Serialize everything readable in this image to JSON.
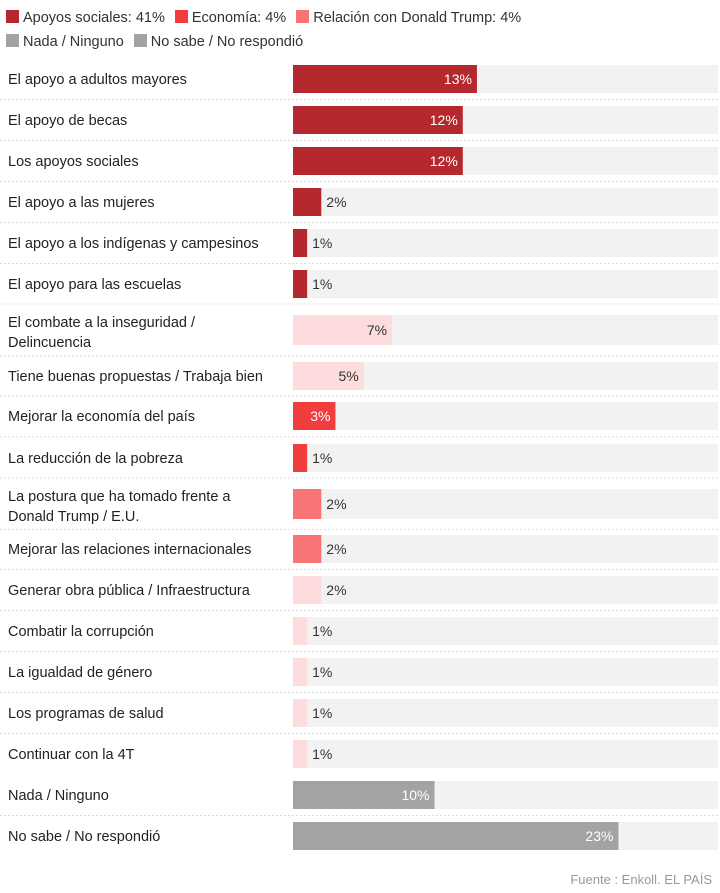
{
  "legend": [
    {
      "label": "Apoyos sociales: 41%",
      "color": "#b5292e"
    },
    {
      "label": "Economía: 4%",
      "color": "#f23d3f"
    },
    {
      "label": "Relación con Donald Trump: 4%",
      "color": "#f97575"
    },
    {
      "label": "Nada / Ninguno",
      "color": "#a3a3a3"
    },
    {
      "label": "No sabe / No respondió",
      "color": "#a3a3a3"
    }
  ],
  "source": "Fuente : Enkoll. EL PAÍS",
  "chart_data": {
    "type": "bar",
    "orientation": "horizontal",
    "xlim": [
      0,
      30
    ],
    "categories": [
      "El apoyo a adultos mayores",
      "El apoyo de becas",
      "Los apoyos sociales",
      "El apoyo a las mujeres",
      "El apoyo a los indígenas y campesinos",
      "El apoyo para las escuelas",
      "El combate a la inseguridad / Delincuencia",
      "Tiene buenas propuestas / Trabaja bien",
      "Mejorar la economía del país",
      "La reducción de la pobreza",
      "La postura que ha tomado frente a Donald Trump / E.U.",
      "Mejorar las relaciones internacionales",
      "Generar obra pública / Infraestructura",
      "Combatir la corrupción",
      "La igualdad de género",
      "Los programas de salud",
      "Continuar con la 4T",
      "Nada / Ninguno",
      "No sabe / No respondió"
    ],
    "values": [
      13,
      12,
      12,
      2,
      1,
      1,
      7,
      5,
      3,
      1,
      2,
      2,
      2,
      1,
      1,
      1,
      1,
      10,
      23
    ],
    "value_labels": [
      "13%",
      "12%",
      "12%",
      "2%",
      "1%",
      "1%",
      "7%",
      "5%",
      "3%",
      "1%",
      "2%",
      "2%",
      "2%",
      "1%",
      "1%",
      "1%",
      "1%",
      "10%",
      "23%"
    ],
    "groups": [
      "apoyos",
      "apoyos",
      "apoyos",
      "apoyos",
      "apoyos",
      "apoyos",
      "otros",
      "otros",
      "economia",
      "economia",
      "trump",
      "trump",
      "otros",
      "otros",
      "otros",
      "otros",
      "otros",
      "nada",
      "nosabe"
    ],
    "group_colors": {
      "apoyos": "#b5292e",
      "economia": "#f23d3f",
      "trump": "#f97575",
      "otros": "#fcdcdc",
      "nada": "#a3a3a3",
      "nosabe": "#a3a3a3"
    },
    "track_color": "#f2f2f2",
    "grid": false,
    "legend_position": "top"
  }
}
